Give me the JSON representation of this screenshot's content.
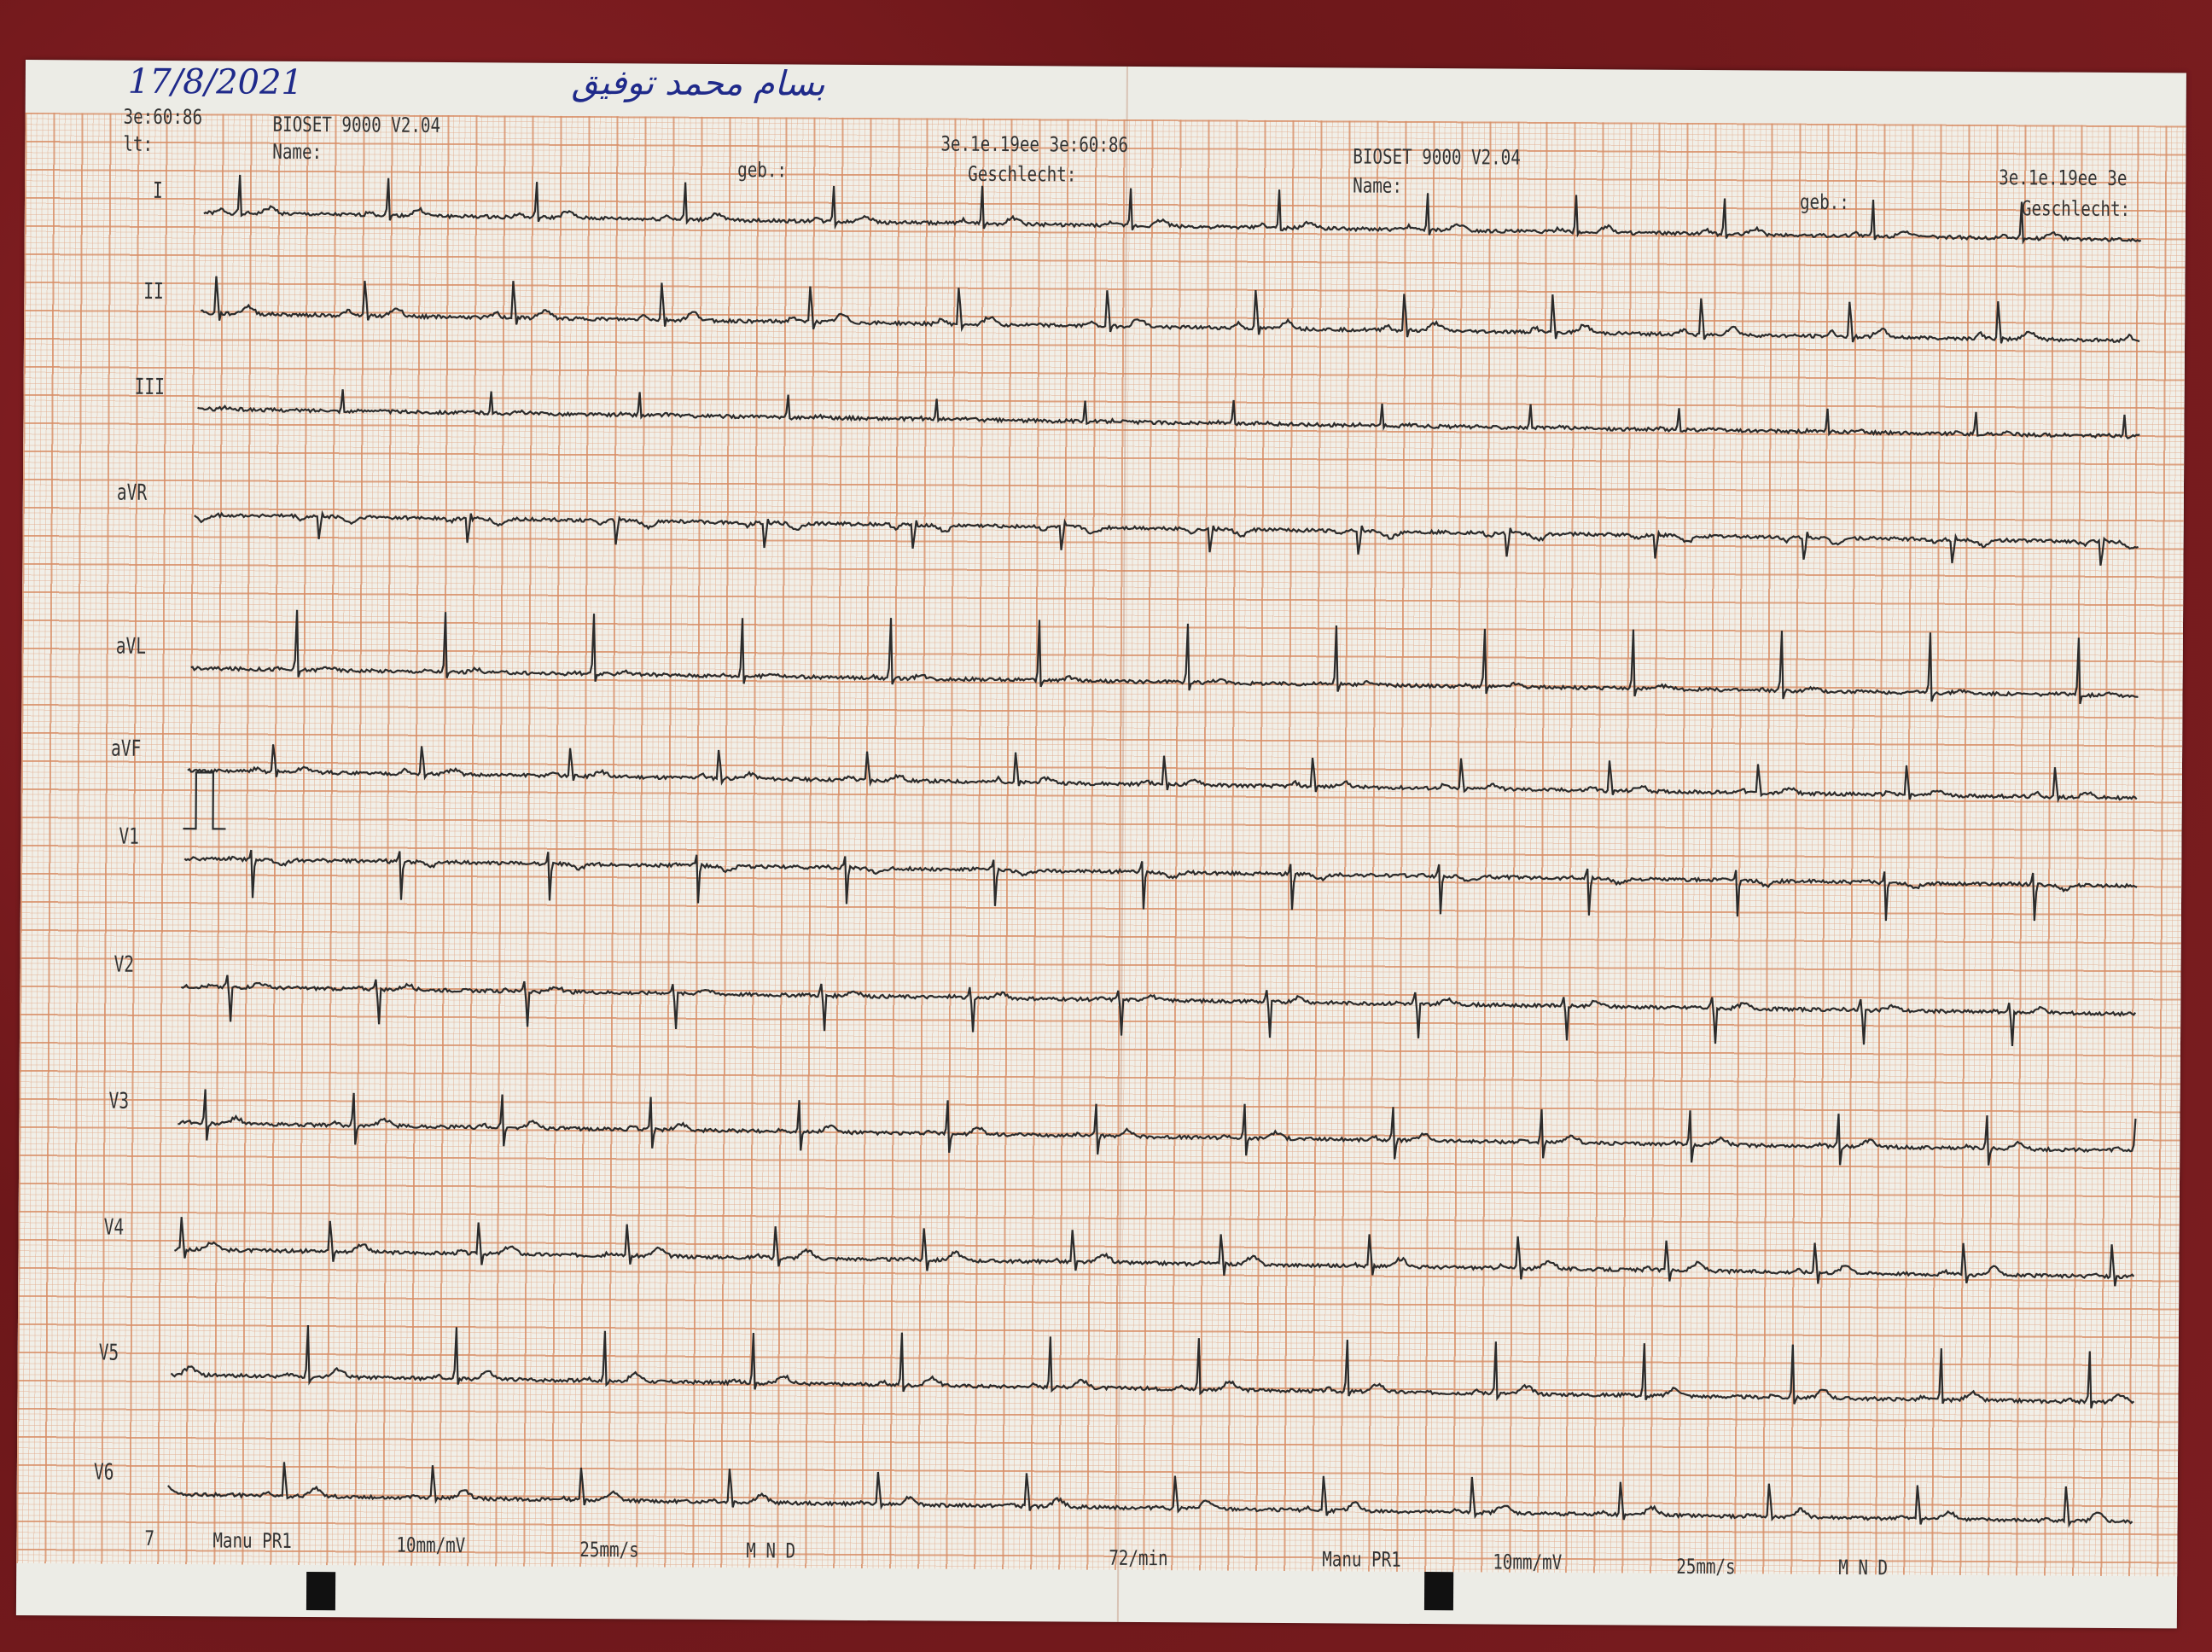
{
  "handwritten": {
    "date": "17/8/2021",
    "name": "بسام محمد توفيق"
  },
  "left_header": {
    "time": "3e:60:86",
    "device": "BIOSET 9000 V2.04",
    "it_label": "lt:",
    "name_label": "Name:",
    "geb_label": "geb.:",
    "datetime": "3e.1e.19ee 3e:60:86",
    "sex_label": "Geschlecht:"
  },
  "right_header": {
    "device": "BIOSET 9000 V2.04",
    "name_label": "Name:",
    "geb_label": "geb.:",
    "datetime": "3e.1e.19ee 3e",
    "sex_label": "Geschlecht:"
  },
  "leads": [
    "I",
    "II",
    "III",
    "aVR",
    "aVL",
    "aVF",
    "V1",
    "V2",
    "V3",
    "V4",
    "V5",
    "V6"
  ],
  "footer": {
    "page": "7",
    "mode_left": "Manu PR1",
    "gain_left": "10mm/mV",
    "speed_left": "25mm/s",
    "filters_left": "M  N  D",
    "heart_rate": "72/min",
    "mode_right": "Manu PR1",
    "gain_right": "10mm/mV",
    "speed_right": "25mm/s",
    "filters_right": "M  N  D"
  },
  "colors": {
    "trace": "#2b2b2b",
    "grid": "#d78c64",
    "ink": "#1f2a8a",
    "background": "#7a1c1f"
  }
}
